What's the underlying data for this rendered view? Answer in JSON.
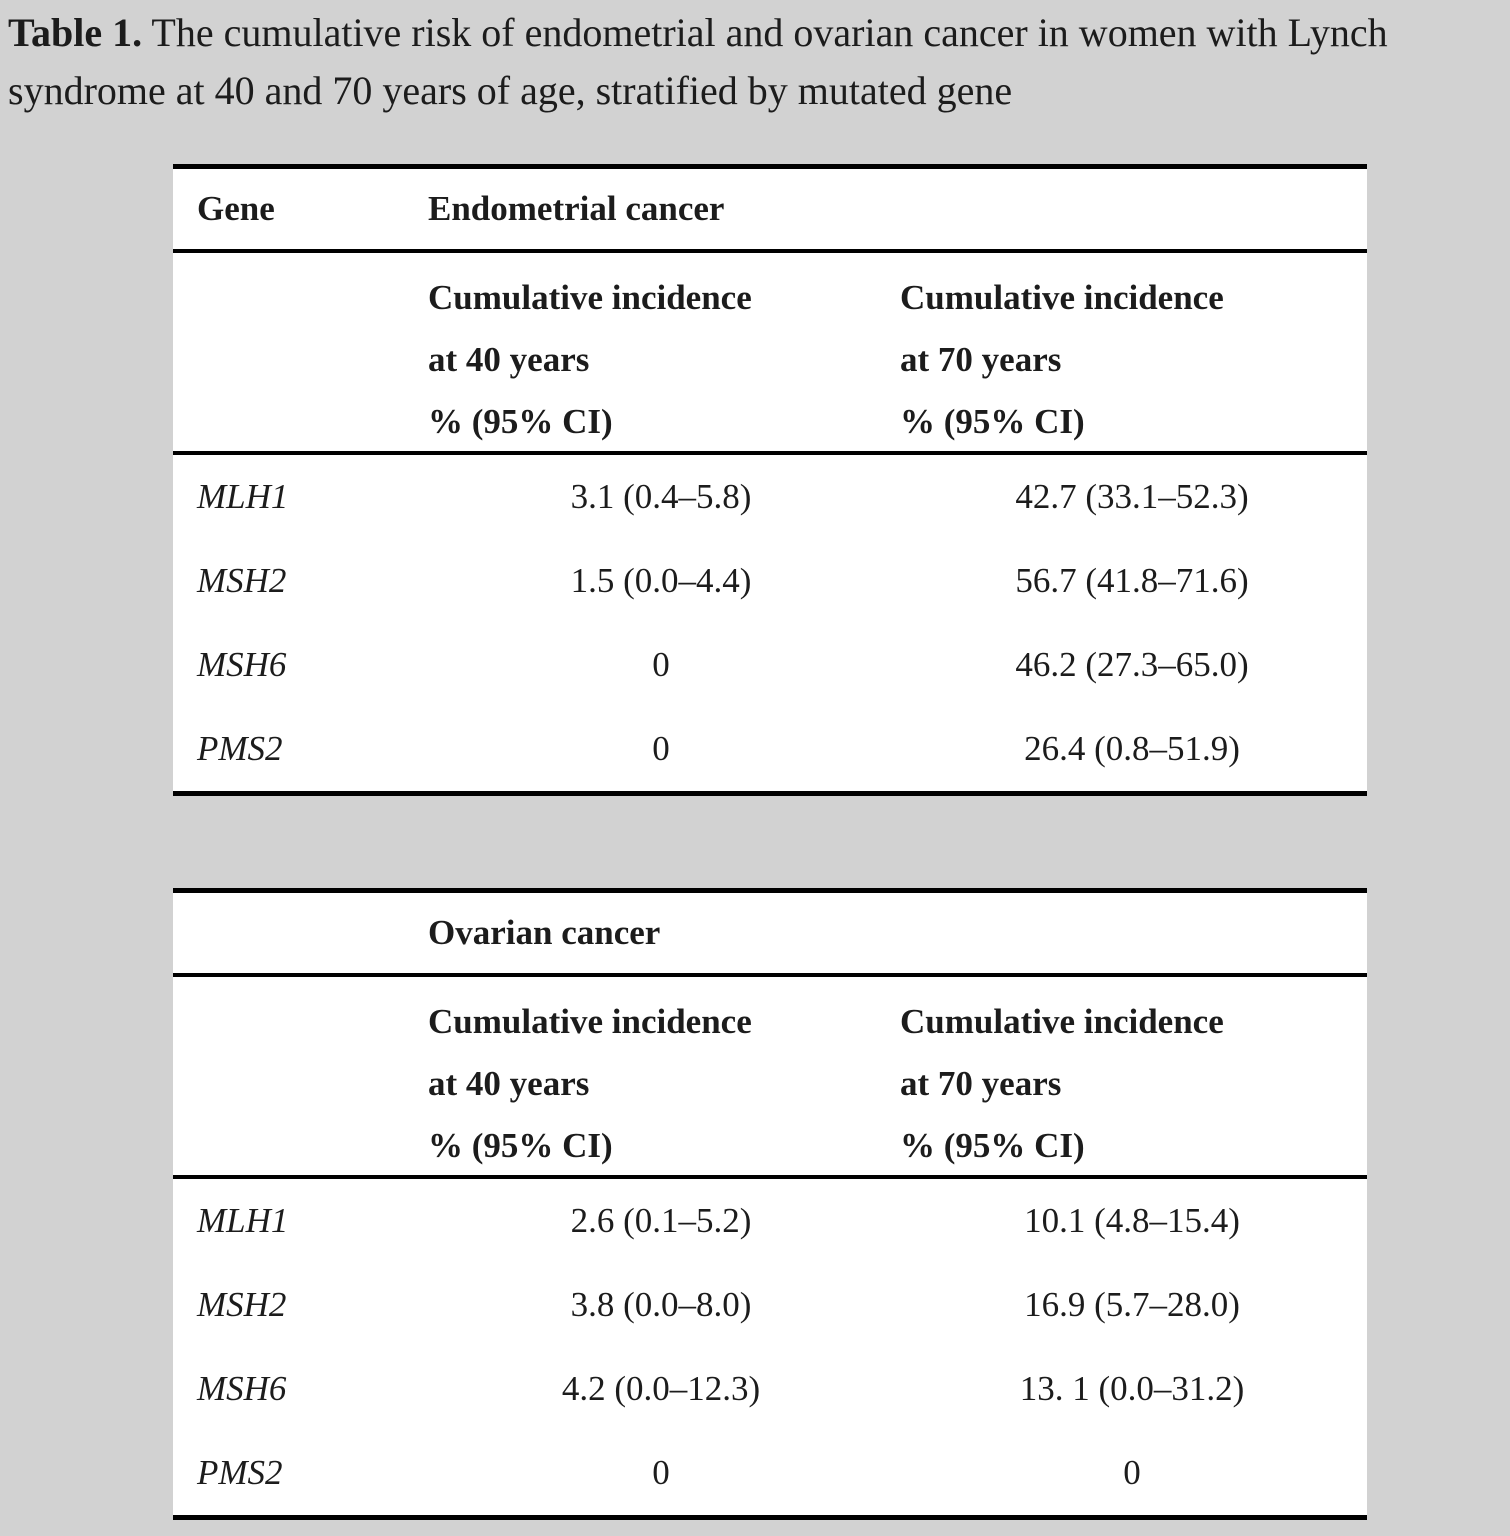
{
  "colors": {
    "page_background": "#d2d2d2",
    "table_background": "#ffffff",
    "rule_color": "#000000",
    "text_color": "#1c1c1c"
  },
  "caption": {
    "label": "Table 1.",
    "text_after_label": " The cumulative risk of endometrial and ovarian cancer in women with Lynch",
    "line2": "syndrome at 40 and 70 years of age, stratified by mutated gene"
  },
  "tables": [
    {
      "id": "endometrial",
      "gene_header": "Gene",
      "cancer_type_header": "Endometrial cancer",
      "column_headers": [
        {
          "lines": [
            "Cumulative incidence",
            "at 40 years",
            "% (95% CI)"
          ]
        },
        {
          "lines": [
            "Cumulative incidence",
            "at 70 years",
            "% (95% CI)"
          ]
        }
      ],
      "rows": [
        {
          "gene": "MLH1",
          "at40": "3.1 (0.4–5.8)",
          "at70": "42.7 (33.1–52.3)"
        },
        {
          "gene": "MSH2",
          "at40": "1.5 (0.0–4.4)",
          "at70": "56.7 (41.8–71.6)"
        },
        {
          "gene": "MSH6",
          "at40": "0",
          "at70": "46.2 (27.3–65.0)"
        },
        {
          "gene": "PMS2",
          "at40": "0",
          "at70": "26.4 (0.8–51.9)"
        }
      ]
    },
    {
      "id": "ovarian",
      "gene_header": "",
      "cancer_type_header": "Ovarian cancer",
      "column_headers": [
        {
          "lines": [
            "Cumulative incidence",
            "at 40 years",
            "% (95% CI)"
          ]
        },
        {
          "lines": [
            "Cumulative incidence",
            "at 70 years",
            "% (95% CI)"
          ]
        }
      ],
      "rows": [
        {
          "gene": "MLH1",
          "at40": "2.6 (0.1–5.2)",
          "at70": "10.1 (4.8–15.4)"
        },
        {
          "gene": "MSH2",
          "at40": "3.8 (0.0–8.0)",
          "at70": "16.9 (5.7–28.0)"
        },
        {
          "gene": "MSH6",
          "at40": "4.2 (0.0–12.3)",
          "at70": "13. 1 (0.0–31.2)"
        },
        {
          "gene": "PMS2",
          "at40": "0",
          "at70": "0"
        }
      ]
    }
  ]
}
